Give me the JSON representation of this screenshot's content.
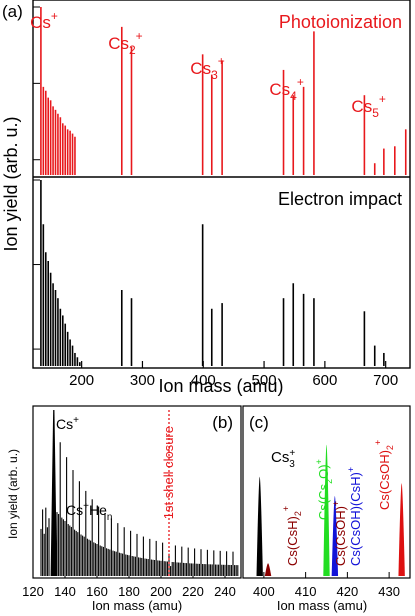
{
  "colors": {
    "photo": "#e8181c",
    "impact": "#000000",
    "c_green": "#22dd22",
    "c_blue": "#1212d8",
    "c_darkred": "#8b0000",
    "c_red": "#dd1111"
  },
  "chart_data": [
    {
      "id": "a",
      "type": "stick",
      "panel_label": "(a)",
      "xlabel": "Ion mass (amu)",
      "ylabel": "Ion yield (arb. u.)",
      "xlim": [
        120,
        740
      ],
      "xticks": [
        200,
        300,
        400,
        500,
        600,
        700
      ],
      "ylog": true,
      "series": [
        {
          "name": "Photoionization",
          "color": "#e8181c",
          "peaks": [
            {
              "x": 133,
              "y": 1.0
            },
            {
              "x": 137,
              "y": 0.09
            },
            {
              "x": 141,
              "y": 0.08
            },
            {
              "x": 145,
              "y": 0.065
            },
            {
              "x": 149,
              "y": 0.06
            },
            {
              "x": 153,
              "y": 0.05
            },
            {
              "x": 157,
              "y": 0.045
            },
            {
              "x": 161,
              "y": 0.04
            },
            {
              "x": 165,
              "y": 0.036
            },
            {
              "x": 169,
              "y": 0.03
            },
            {
              "x": 173,
              "y": 0.028
            },
            {
              "x": 177,
              "y": 0.025
            },
            {
              "x": 181,
              "y": 0.024
            },
            {
              "x": 185,
              "y": 0.022
            },
            {
              "x": 189,
              "y": 0.02
            },
            {
              "x": 266,
              "y": 0.55
            },
            {
              "x": 282,
              "y": 0.3
            },
            {
              "x": 399,
              "y": 0.24
            },
            {
              "x": 414,
              "y": 0.13
            },
            {
              "x": 431,
              "y": 0.2
            },
            {
              "x": 532,
              "y": 0.15
            },
            {
              "x": 548,
              "y": 0.07
            },
            {
              "x": 565,
              "y": 0.09
            },
            {
              "x": 582,
              "y": 0.48
            },
            {
              "x": 665,
              "y": 0.07
            },
            {
              "x": 682,
              "y": 0.009
            },
            {
              "x": 697,
              "y": 0.014
            },
            {
              "x": 715,
              "y": 0.015
            },
            {
              "x": 733,
              "y": 0.025
            }
          ],
          "labels": [
            {
              "text": "Cs",
              "sup": "+",
              "sub": "",
              "x": 135
            },
            {
              "text": "Cs",
              "sup": "+",
              "sub": "2",
              "x": 270
            },
            {
              "text": "Cs",
              "sup": "+",
              "sub": "3",
              "x": 405
            },
            {
              "text": "Cs",
              "sup": "+",
              "sub": "4",
              "x": 535
            },
            {
              "text": "Cs",
              "sup": "+",
              "sub": "5",
              "x": 670
            }
          ]
        },
        {
          "name": "Electron impact",
          "color": "#000000",
          "peaks": [
            {
              "x": 133,
              "y": 1.0
            },
            {
              "x": 137,
              "y": 0.3
            },
            {
              "x": 141,
              "y": 0.14
            },
            {
              "x": 145,
              "y": 0.11
            },
            {
              "x": 149,
              "y": 0.08
            },
            {
              "x": 153,
              "y": 0.06
            },
            {
              "x": 157,
              "y": 0.05
            },
            {
              "x": 161,
              "y": 0.04
            },
            {
              "x": 165,
              "y": 0.03
            },
            {
              "x": 169,
              "y": 0.025
            },
            {
              "x": 173,
              "y": 0.02
            },
            {
              "x": 177,
              "y": 0.016
            },
            {
              "x": 181,
              "y": 0.013
            },
            {
              "x": 185,
              "y": 0.011
            },
            {
              "x": 189,
              "y": 0.009
            },
            {
              "x": 193,
              "y": 0.008
            },
            {
              "x": 197,
              "y": 0.007
            },
            {
              "x": 266,
              "y": 0.05
            },
            {
              "x": 282,
              "y": 0.04
            },
            {
              "x": 399,
              "y": 0.3
            },
            {
              "x": 414,
              "y": 0.03
            },
            {
              "x": 431,
              "y": 0.035
            },
            {
              "x": 532,
              "y": 0.04
            },
            {
              "x": 548,
              "y": 0.06
            },
            {
              "x": 565,
              "y": 0.045
            },
            {
              "x": 582,
              "y": 0.04
            },
            {
              "x": 665,
              "y": 0.028
            },
            {
              "x": 682,
              "y": 0.011
            },
            {
              "x": 697,
              "y": 0.009
            }
          ]
        }
      ]
    },
    {
      "id": "b",
      "type": "stick",
      "panel_label": "(b)",
      "xlabel": "Ion mass (amu)",
      "ylabel": "Ion yield (arb. u.)",
      "xlim": [
        120,
        250
      ],
      "xticks": [
        120,
        140,
        160,
        180,
        200,
        220,
        240
      ],
      "ylog": true,
      "annotations": [
        {
          "text": "Cs",
          "sup": "+",
          "sub": ""
        },
        {
          "text": "Cs",
          "sup": "+",
          "sub": "",
          "tail": "He",
          "tail_sub": "n"
        },
        {
          "text": "1st shell closure",
          "x": 205,
          "vertical": true,
          "dotted_line": true
        }
      ]
    },
    {
      "id": "c",
      "type": "area",
      "panel_label": "(c)",
      "xlabel": "Ion mass (amu)",
      "xlim": [
        395,
        435
      ],
      "xticks": [
        400,
        410,
        420,
        430
      ],
      "peaks": [
        {
          "name": "Cs3+",
          "x": 399,
          "y": 0.62,
          "color": "#000000"
        },
        {
          "name": "Cs(CsH)2+",
          "x": 401,
          "y": 0.08,
          "color": "#8b0000"
        },
        {
          "name": "Cs(Cs2O)+",
          "x": 415,
          "y": 0.82,
          "color": "#22dd22"
        },
        {
          "name": "Cs(CsOH)(CsH)+",
          "x": 417,
          "y": 0.5,
          "color": "#1212d8"
        },
        {
          "name": "Cs(CsOH)2+",
          "x": 433,
          "y": 0.58,
          "color": "#dd1111"
        }
      ]
    }
  ]
}
